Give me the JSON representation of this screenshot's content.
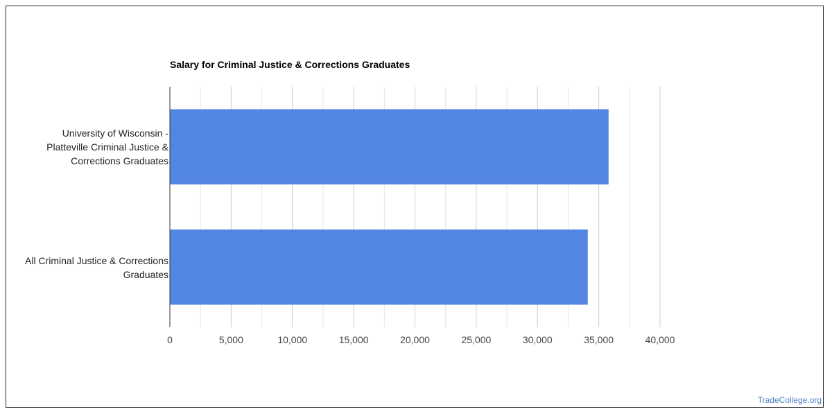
{
  "chart_data": {
    "type": "bar",
    "orientation": "horizontal",
    "title": "Salary for Criminal Justice & Corrections Graduates",
    "categories": [
      [
        "University of Wisconsin -",
        "Platteville Criminal Justice &",
        "Corrections Graduates"
      ],
      [
        "All Criminal Justice & Corrections",
        "Graduates"
      ]
    ],
    "values": [
      35800,
      34100
    ],
    "xlim": [
      0,
      40000
    ],
    "xticks": [
      "0",
      "5,000",
      "10,000",
      "15,000",
      "20,000",
      "25,000",
      "30,000",
      "35,000",
      "40,000"
    ],
    "grid": true,
    "bar_color": "#5385e4",
    "grid_color": "#cccccc",
    "minor_grid_color": "#e6e6e6",
    "axis_color": "#333333"
  },
  "watermark": "TradeCollege.org"
}
